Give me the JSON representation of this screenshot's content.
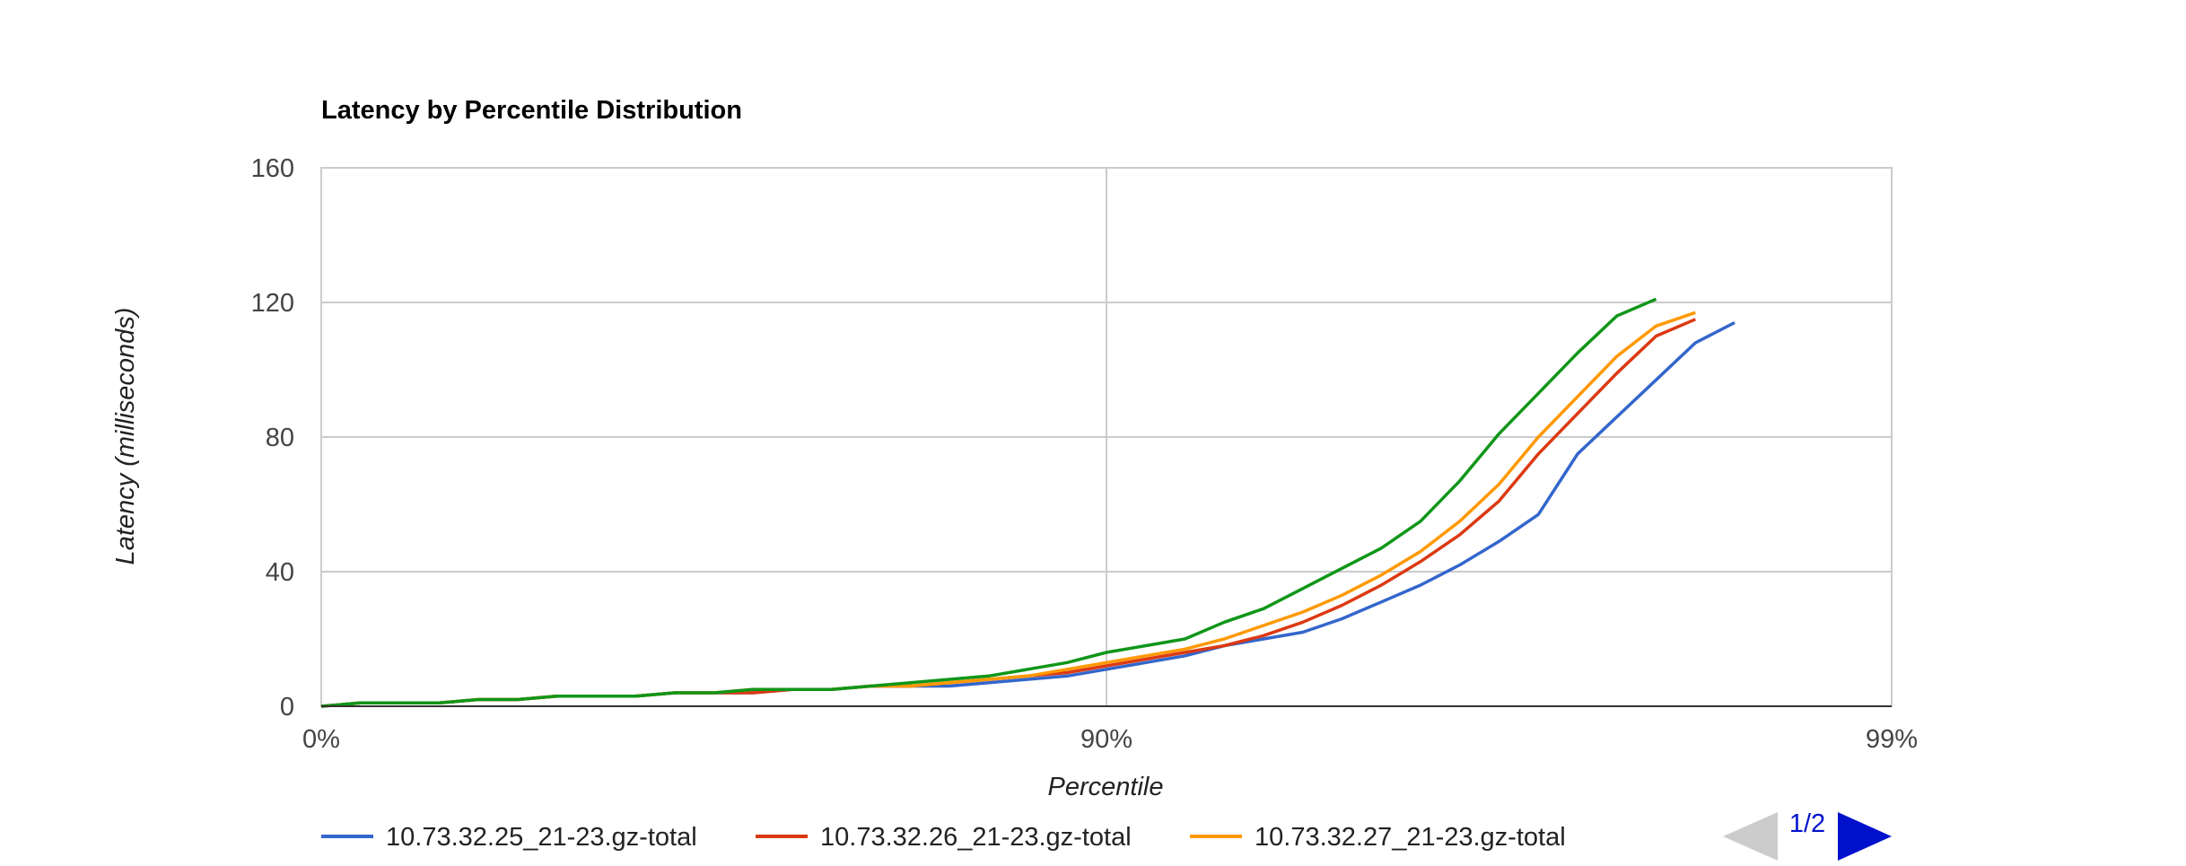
{
  "chart_data": {
    "type": "line",
    "title": "Latency by Percentile Distribution",
    "xlabel": "Percentile",
    "ylabel": "Latency (milliseconds)",
    "ylim": [
      0,
      160
    ],
    "yticks": [
      0,
      40,
      80,
      120,
      160
    ],
    "x_tick_labels": [
      "0%",
      "90%",
      "99%"
    ],
    "grid": true,
    "legend_position": "bottom",
    "pager": {
      "label": "1/2"
    },
    "x": [
      0,
      0.5,
      1,
      1.5,
      2,
      2.5,
      3,
      3.5,
      4,
      4.5,
      5,
      5.5,
      6,
      6.5,
      7,
      7.5,
      8,
      8.5,
      9,
      9.5,
      10,
      10.5,
      11,
      11.5,
      12,
      12.5,
      13,
      13.5,
      14,
      14.5,
      15,
      15.5,
      16,
      16.5,
      17,
      17.5,
      18,
      18.5,
      19,
      19.5,
      20
    ],
    "series": [
      {
        "name": "10.73.32.25_21-23.gz-total",
        "color": "#3366cc",
        "values": [
          0,
          1,
          1,
          1,
          2,
          2,
          3,
          3,
          3,
          4,
          4,
          4,
          5,
          5,
          6,
          6,
          6,
          7,
          8,
          9,
          11,
          13,
          15,
          18,
          20,
          22,
          26,
          31,
          36,
          42,
          49,
          57,
          75,
          86,
          97,
          108,
          114,
          null,
          null,
          null,
          null
        ]
      },
      {
        "name": "10.73.32.26_21-23.gz-total",
        "color": "#dc3912",
        "values": [
          0,
          1,
          1,
          1,
          2,
          2,
          3,
          3,
          3,
          4,
          4,
          4,
          5,
          5,
          6,
          6,
          7,
          8,
          9,
          10,
          12,
          14,
          16,
          18,
          21,
          25,
          30,
          36,
          43,
          51,
          61,
          75,
          87,
          99,
          110,
          115,
          null,
          null,
          null,
          null,
          null
        ]
      },
      {
        "name": "10.73.32.27_21-23.gz-total",
        "color": "#ff9900",
        "values": [
          0,
          1,
          1,
          1,
          2,
          2,
          3,
          3,
          3,
          4,
          4,
          5,
          5,
          5,
          6,
          6,
          7,
          8,
          9,
          11,
          13,
          15,
          17,
          20,
          24,
          28,
          33,
          39,
          46,
          55,
          66,
          80,
          92,
          104,
          113,
          117,
          null,
          null,
          null,
          null,
          null
        ]
      },
      {
        "name": "",
        "color": "#109618",
        "values": [
          0,
          1,
          1,
          1,
          2,
          2,
          3,
          3,
          3,
          4,
          4,
          5,
          5,
          5,
          6,
          7,
          8,
          9,
          11,
          13,
          16,
          18,
          20,
          25,
          29,
          35,
          41,
          47,
          55,
          67,
          81,
          93,
          105,
          116,
          121,
          null,
          null,
          null,
          null,
          null,
          null
        ]
      }
    ]
  }
}
